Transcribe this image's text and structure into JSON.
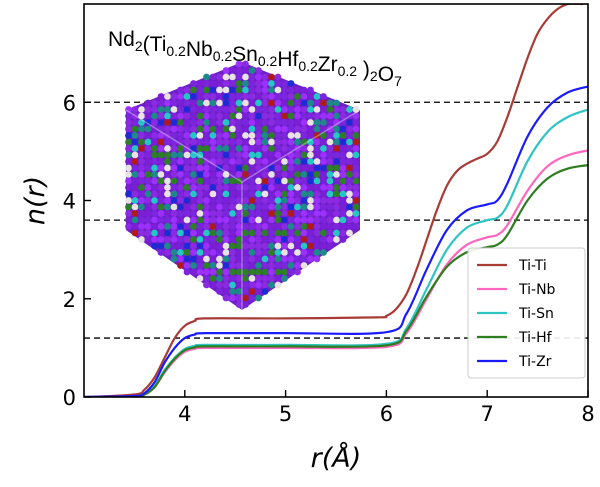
{
  "chart_data": {
    "type": "line",
    "title": "Nd2(Ti0.2Nb0.2Sn0.2Hf0.2Zr0.2 )2O7",
    "title_parts": [
      {
        "text": "Nd",
        "sub": "2"
      },
      {
        "text": "(Ti",
        "sub": "0.2"
      },
      {
        "text": "Nb",
        "sub": "0.2"
      },
      {
        "text": "Sn",
        "sub": "0.2"
      },
      {
        "text": "Hf",
        "sub": "0.2"
      },
      {
        "text": "Zr",
        "sub": "0.2"
      },
      {
        "text": " )",
        "sub": "2"
      },
      {
        "text": "O",
        "sub": "7"
      }
    ],
    "xlabel": "r(Å)",
    "ylabel": "n(r)",
    "xlim": [
      3.0,
      8.0
    ],
    "ylim": [
      0,
      8.0
    ],
    "xticks": [
      4,
      5,
      6,
      7,
      8
    ],
    "yticks": [
      0,
      2,
      4,
      6
    ],
    "reference_lines_y": [
      1.2,
      3.6,
      6.0
    ],
    "legend_position": "lower-right",
    "inset": "polyhedral nanoparticle structure model",
    "series": [
      {
        "name": "Ti-Ti",
        "color": "#a83b36",
        "x": [
          3.0,
          3.5,
          3.6,
          3.7,
          3.8,
          3.9,
          4.0,
          4.1,
          4.2,
          5.0,
          5.9,
          6.0,
          6.1,
          6.2,
          6.3,
          6.4,
          6.5,
          6.6,
          6.7,
          6.8,
          6.9,
          7.0,
          7.1,
          7.2,
          7.3,
          7.4,
          7.5,
          7.6,
          7.7,
          7.8,
          7.95
        ],
        "values": [
          0,
          0.05,
          0.15,
          0.4,
          0.8,
          1.2,
          1.45,
          1.55,
          1.6,
          1.6,
          1.62,
          1.65,
          1.8,
          2.1,
          2.6,
          3.2,
          3.8,
          4.3,
          4.6,
          4.75,
          4.85,
          4.95,
          5.2,
          5.7,
          6.3,
          6.9,
          7.4,
          7.7,
          7.9,
          8.0,
          8.0
        ]
      },
      {
        "name": "Ti-Nb",
        "color": "#ff66bf",
        "x": [
          3.0,
          3.5,
          3.6,
          3.7,
          3.8,
          3.9,
          4.0,
          4.1,
          4.2,
          5.0,
          6.0,
          6.2,
          6.4,
          6.6,
          6.8,
          7.0,
          7.1,
          7.2,
          7.4,
          7.6,
          7.8,
          8.0
        ],
        "values": [
          0,
          0.01,
          0.05,
          0.2,
          0.5,
          0.75,
          0.92,
          0.98,
          1.0,
          1.0,
          1.02,
          1.3,
          2.0,
          2.7,
          3.1,
          3.25,
          3.3,
          3.5,
          4.2,
          4.7,
          4.92,
          5.02
        ]
      },
      {
        "name": "Ti-Sn",
        "color": "#2ec4c4",
        "x": [
          3.0,
          3.5,
          3.6,
          3.7,
          3.8,
          3.9,
          4.0,
          4.1,
          4.2,
          5.0,
          6.0,
          6.2,
          6.4,
          6.6,
          6.8,
          7.0,
          7.1,
          7.2,
          7.4,
          7.6,
          7.8,
          8.0
        ],
        "values": [
          0,
          0.01,
          0.05,
          0.22,
          0.55,
          0.8,
          0.98,
          1.04,
          1.06,
          1.06,
          1.08,
          1.4,
          2.2,
          3.0,
          3.45,
          3.6,
          3.65,
          3.9,
          4.8,
          5.4,
          5.7,
          5.85
        ]
      },
      {
        "name": "Ti-Hf",
        "color": "#2e7d1f",
        "x": [
          3.0,
          3.5,
          3.6,
          3.7,
          3.8,
          3.9,
          4.0,
          4.1,
          4.2,
          5.0,
          6.0,
          6.2,
          6.4,
          6.6,
          6.8,
          7.0,
          7.1,
          7.2,
          7.4,
          7.6,
          7.8,
          8.0
        ],
        "values": [
          0,
          0.01,
          0.05,
          0.2,
          0.52,
          0.78,
          0.95,
          1.01,
          1.03,
          1.03,
          1.05,
          1.35,
          2.05,
          2.65,
          2.95,
          3.05,
          3.1,
          3.3,
          4.0,
          4.45,
          4.65,
          4.72
        ]
      },
      {
        "name": "Ti-Zr",
        "color": "#1a1aff",
        "x": [
          3.0,
          3.5,
          3.6,
          3.7,
          3.8,
          3.9,
          4.0,
          4.1,
          4.2,
          5.0,
          6.0,
          6.2,
          6.4,
          6.6,
          6.8,
          7.0,
          7.1,
          7.2,
          7.4,
          7.6,
          7.8,
          8.0
        ],
        "values": [
          0,
          0.02,
          0.08,
          0.3,
          0.7,
          1.0,
          1.2,
          1.27,
          1.3,
          1.3,
          1.32,
          1.7,
          2.6,
          3.4,
          3.8,
          3.92,
          4.0,
          4.35,
          5.3,
          5.9,
          6.2,
          6.32
        ]
      }
    ]
  }
}
